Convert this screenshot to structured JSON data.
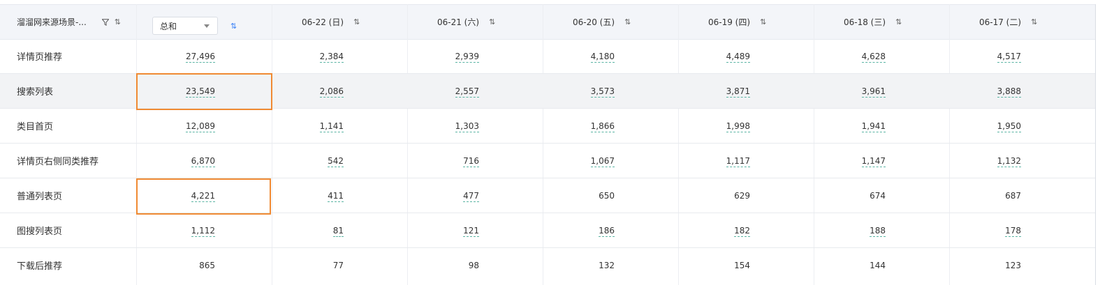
{
  "header": {
    "first_col": "溜溜网来源场景-...",
    "aggregate_select": "总和",
    "dates": [
      "06-22 (日)",
      "06-21 (六)",
      "06-20 (五)",
      "06-19 (四)",
      "06-18 (三)",
      "06-17 (二)"
    ],
    "sort_glyph": "⇅"
  },
  "rows": [
    {
      "label": "详情页推荐",
      "total": "27,496",
      "values": [
        "2,384",
        "2,939",
        "4,180",
        "4,489",
        "4,628",
        "4,517"
      ]
    },
    {
      "label": "搜索列表",
      "total": "23,549",
      "values": [
        "2,086",
        "2,557",
        "3,573",
        "3,871",
        "3,961",
        "3,888"
      ]
    },
    {
      "label": "类目首页",
      "total": "12,089",
      "values": [
        "1,141",
        "1,303",
        "1,866",
        "1,998",
        "1,941",
        "1,950"
      ]
    },
    {
      "label": "详情页右侧同类推荐",
      "total": "6,870",
      "values": [
        "542",
        "716",
        "1,067",
        "1,117",
        "1,147",
        "1,132"
      ]
    },
    {
      "label": "普通列表页",
      "total": "4,221",
      "values": [
        "411",
        "477",
        "650",
        "629",
        "674",
        "687"
      ]
    },
    {
      "label": "图搜列表页",
      "total": "1,112",
      "values": [
        "81",
        "121",
        "186",
        "182",
        "188",
        "178"
      ]
    },
    {
      "label": "下载后推荐",
      "total": "865",
      "values": [
        "77",
        "98",
        "132",
        "154",
        "144",
        "123"
      ]
    }
  ],
  "highlight_colors": {
    "box": "#f08a33",
    "hover_row": "#f2f3f5",
    "underline": "#5ab4a3"
  }
}
